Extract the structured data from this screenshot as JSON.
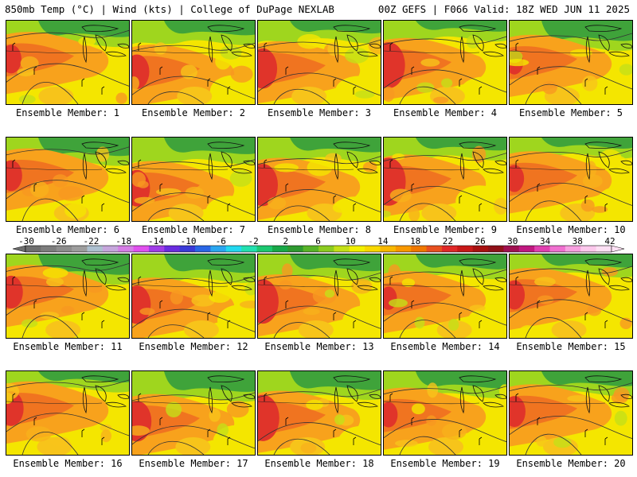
{
  "header": {
    "left": "850mb Temp (°C) | Wind (kts) | College of DuPage NEXLAB",
    "right": "00Z GEFS | F066 Valid: 18Z WED JUN 11 2025"
  },
  "panels": [
    {
      "label": "Ensemble Member: 1"
    },
    {
      "label": "Ensemble Member: 2"
    },
    {
      "label": "Ensemble Member: 3"
    },
    {
      "label": "Ensemble Member: 4"
    },
    {
      "label": "Ensemble Member: 5"
    },
    {
      "label": "Ensemble Member: 6"
    },
    {
      "label": "Ensemble Member: 7"
    },
    {
      "label": "Ensemble Member: 8"
    },
    {
      "label": "Ensemble Member: 9"
    },
    {
      "label": "Ensemble Member: 10"
    },
    {
      "label": "Ensemble Member: 11"
    },
    {
      "label": "Ensemble Member: 12"
    },
    {
      "label": "Ensemble Member: 13"
    },
    {
      "label": "Ensemble Member: 14"
    },
    {
      "label": "Ensemble Member: 15"
    },
    {
      "label": "Ensemble Member: 16"
    },
    {
      "label": "Ensemble Member: 17"
    },
    {
      "label": "Ensemble Member: 18"
    },
    {
      "label": "Ensemble Member: 19"
    },
    {
      "label": "Ensemble Member: 20"
    }
  ],
  "colorbar": {
    "tick_labels": [
      "-30",
      "-26",
      "-22",
      "-18",
      "-14",
      "-10",
      "-6",
      "-2",
      "2",
      "6",
      "10",
      "14",
      "18",
      "22",
      "26",
      "30",
      "34",
      "38",
      "42"
    ],
    "colors": [
      "#6e6e6e",
      "#7d7d7d",
      "#8d8d8d",
      "#9d9d9d",
      "#adc0d0",
      "#c6a6dc",
      "#d67ee6",
      "#e050ee",
      "#a03ce8",
      "#6a2ce0",
      "#3a3ad8",
      "#2a66e6",
      "#2aa6f0",
      "#22d8f0",
      "#22e0b0",
      "#1cc870",
      "#18a848",
      "#2e9a30",
      "#58b428",
      "#8ccc20",
      "#c4e018",
      "#f2f000",
      "#f8d800",
      "#f8b800",
      "#f89800",
      "#f07800",
      "#e85020",
      "#e02828",
      "#c81818",
      "#a81010",
      "#901018",
      "#a01050",
      "#c01880",
      "#e040b0",
      "#f070d0",
      "#f8a0e0",
      "#fcc8ec",
      "#fde0f4"
    ],
    "levels_start": -32,
    "step": 2
  },
  "map": {
    "variable": "850mb Temp (°C)",
    "palette_note": "green 6-10, yellow 10-16, orange 16-22, red 22-28"
  }
}
